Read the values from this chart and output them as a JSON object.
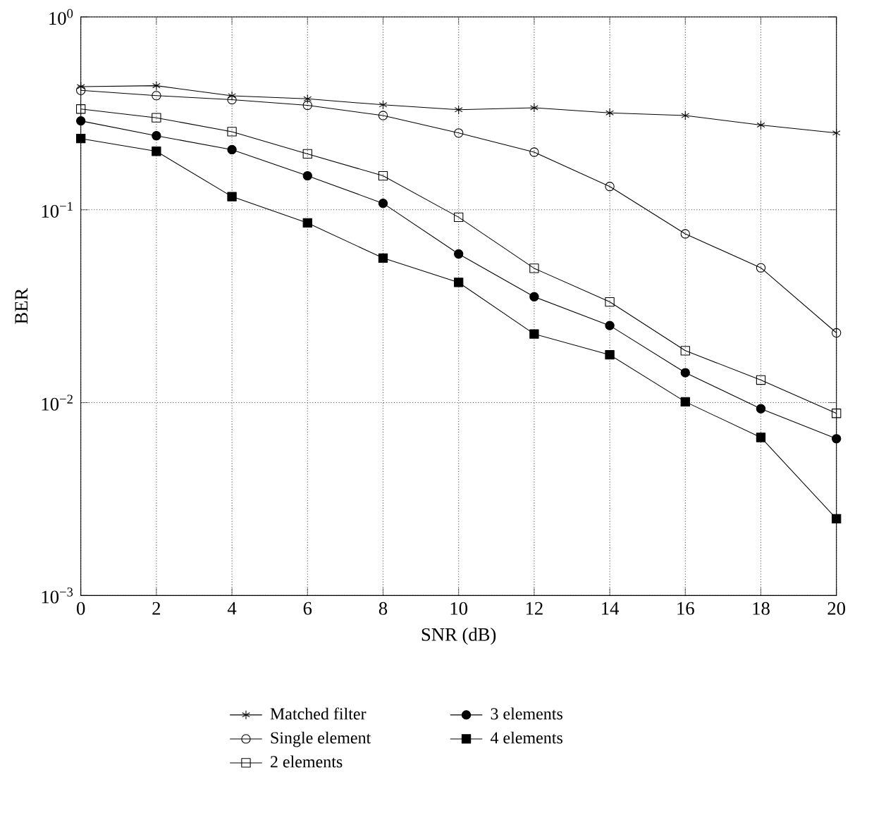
{
  "chart_data": {
    "type": "line",
    "xlabel": "SNR (dB)",
    "ylabel": "BER",
    "log": "y",
    "x": [
      0,
      2,
      4,
      6,
      8,
      10,
      12,
      14,
      16,
      18,
      20
    ],
    "xlim": [
      0,
      20
    ],
    "xticks": [
      0,
      2,
      4,
      6,
      8,
      10,
      12,
      14,
      16,
      18,
      20
    ],
    "ylim": [
      0.001,
      1
    ],
    "yticks": [
      {
        "value": 1,
        "label": "10$^{0}$"
      },
      {
        "value": 0.1,
        "label": "10$^{−1}$"
      },
      {
        "value": 0.01,
        "label": "10$^{−2}$"
      },
      {
        "value": 0.001,
        "label": "10$^{−3}$"
      }
    ],
    "grid": true,
    "legend": "bottom",
    "line_style": "solid",
    "series": [
      {
        "name": "Matched filter",
        "color": "#000000",
        "marker": "cross",
        "values": [
          0.435,
          0.44,
          0.39,
          0.376,
          0.35,
          0.33,
          0.338,
          0.318,
          0.308,
          0.275,
          0.25
        ]
      },
      {
        "name": "Single element",
        "color": "#000000",
        "marker": "circle",
        "values": [
          0.416,
          0.391,
          0.372,
          0.348,
          0.308,
          0.25,
          0.199,
          0.132,
          0.075,
          0.05,
          0.023
        ]
      },
      {
        "name": "2 elements",
        "color": "#000000",
        "marker": "square",
        "values": [
          0.333,
          0.3,
          0.254,
          0.195,
          0.15,
          0.0915,
          0.0497,
          0.0333,
          0.0186,
          0.0131,
          0.0088
        ]
      },
      {
        "name": "3 elements",
        "color": "#000000",
        "marker": "circle",
        "values": [
          0.289,
          0.242,
          0.205,
          0.15,
          0.108,
          0.059,
          0.0354,
          0.0251,
          0.0143,
          0.0093,
          0.0065
        ]
      },
      {
        "name": "4 elements",
        "color": "#000000",
        "marker": "square",
        "values": [
          0.234,
          0.201,
          0.117,
          0.0855,
          0.0562,
          0.042,
          0.0227,
          0.0177,
          0.0101,
          0.0066,
          0.0025
        ]
      }
    ]
  }
}
